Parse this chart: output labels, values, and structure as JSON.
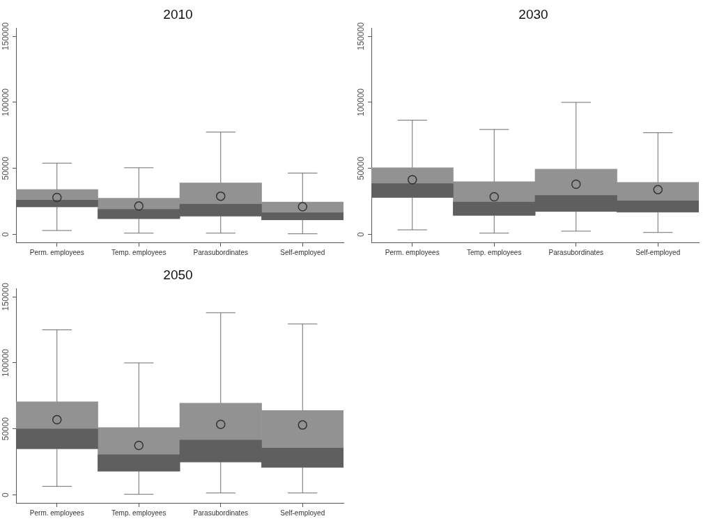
{
  "chart_data": [
    {
      "type": "box",
      "title": "2010",
      "categories": [
        "Perm. employees",
        "Temp. employees",
        "Parasubordinates",
        "Self-employed"
      ],
      "color": "#929292",
      "ylim": [
        -6000,
        156000
      ],
      "yticks": [
        0,
        50000,
        100000,
        150000
      ],
      "grid": false,
      "boxes": [
        {
          "low": 3000,
          "q1": 21000,
          "median": 26000,
          "q3": 34000,
          "high": 54000,
          "mean": 28000
        },
        {
          "low": 1000,
          "q1": 12000,
          "median": 19000,
          "q3": 27500,
          "high": 50500,
          "mean": 21500
        },
        {
          "low": 1000,
          "q1": 14000,
          "median": 23000,
          "q3": 39000,
          "high": 77500,
          "mean": 29000
        },
        {
          "low": 500,
          "q1": 11000,
          "median": 16500,
          "q3": 24500,
          "high": 46500,
          "mean": 21000
        }
      ]
    },
    {
      "type": "box",
      "title": "2030",
      "categories": [
        "Perm. employees",
        "Temp. employees",
        "Parasubordinates",
        "Self-employed"
      ],
      "color": "#929292",
      "ylim": [
        -6000,
        156000
      ],
      "yticks": [
        0,
        50000,
        100000,
        150000
      ],
      "grid": false,
      "boxes": [
        {
          "low": 3500,
          "q1": 28000,
          "median": 38500,
          "q3": 50500,
          "high": 86500,
          "mean": 41500
        },
        {
          "low": 1000,
          "q1": 14500,
          "median": 24500,
          "q3": 40000,
          "high": 79500,
          "mean": 28500
        },
        {
          "low": 2500,
          "q1": 17500,
          "median": 29500,
          "q3": 49500,
          "high": 100000,
          "mean": 38000
        },
        {
          "low": 1500,
          "q1": 17000,
          "median": 25500,
          "q3": 39500,
          "high": 77000,
          "mean": 34000
        }
      ]
    },
    {
      "type": "box",
      "title": "2050",
      "categories": [
        "Perm. employees",
        "Temp. employees",
        "Parasubordinates",
        "Self-employed"
      ],
      "color": "#929292",
      "ylim": [
        -6000,
        156000
      ],
      "yticks": [
        0,
        50000,
        100000,
        150000
      ],
      "grid": false,
      "boxes": [
        {
          "low": 6500,
          "q1": 35000,
          "median": 50000,
          "q3": 70500,
          "high": 125000,
          "mean": 57000
        },
        {
          "low": 500,
          "q1": 18000,
          "median": 30500,
          "q3": 51000,
          "high": 100000,
          "mean": 37500
        },
        {
          "low": 1500,
          "q1": 25000,
          "median": 41500,
          "q3": 69500,
          "high": 138000,
          "mean": 53500
        },
        {
          "low": 1500,
          "q1": 21000,
          "median": 35500,
          "q3": 64000,
          "high": 129500,
          "mean": 53000
        }
      ]
    }
  ]
}
